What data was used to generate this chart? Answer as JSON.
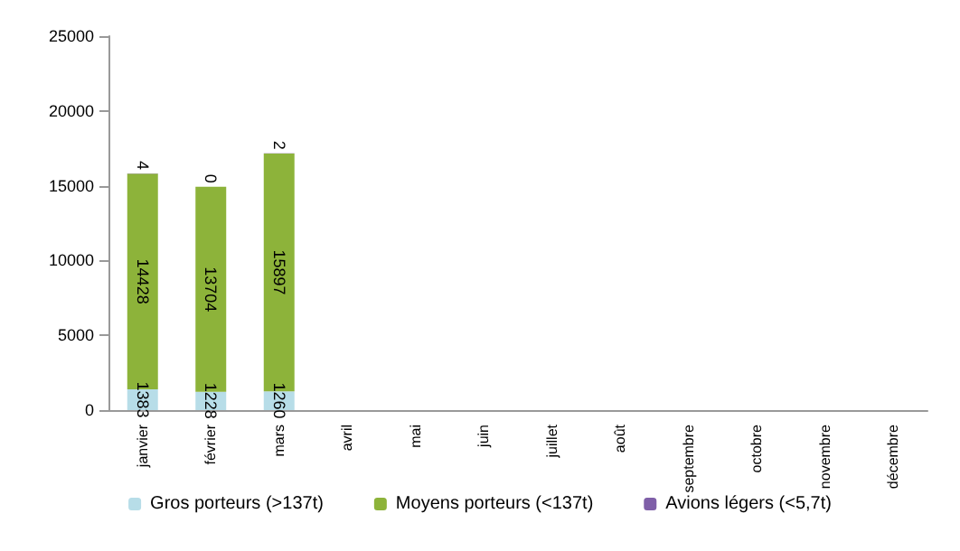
{
  "chart_data": {
    "type": "bar",
    "stacked": true,
    "categories": [
      "janvier",
      "février",
      "mars",
      "avril",
      "mai",
      "juin",
      "juillet",
      "août",
      "septembre",
      "octobre",
      "novembre",
      "décembre"
    ],
    "series": [
      {
        "name": "Gros porteurs (>137t)",
        "color": "#b7dde8",
        "values": [
          1383,
          1228,
          1260,
          null,
          null,
          null,
          null,
          null,
          null,
          null,
          null,
          null
        ]
      },
      {
        "name": "Moyens porteurs (<137t)",
        "color": "#8db33a",
        "values": [
          14428,
          13704,
          15897,
          null,
          null,
          null,
          null,
          null,
          null,
          null,
          null,
          null
        ]
      },
      {
        "name": "Avions légers (<5,7t)",
        "color": "#7f5fa8",
        "values": [
          4,
          0,
          2,
          null,
          null,
          null,
          null,
          null,
          null,
          null,
          null,
          null
        ]
      }
    ],
    "ylim": [
      0,
      25000
    ],
    "yticks": [
      0,
      5000,
      10000,
      15000,
      20000,
      25000
    ],
    "grid": false,
    "legend": "bottom",
    "data_labels": true
  }
}
